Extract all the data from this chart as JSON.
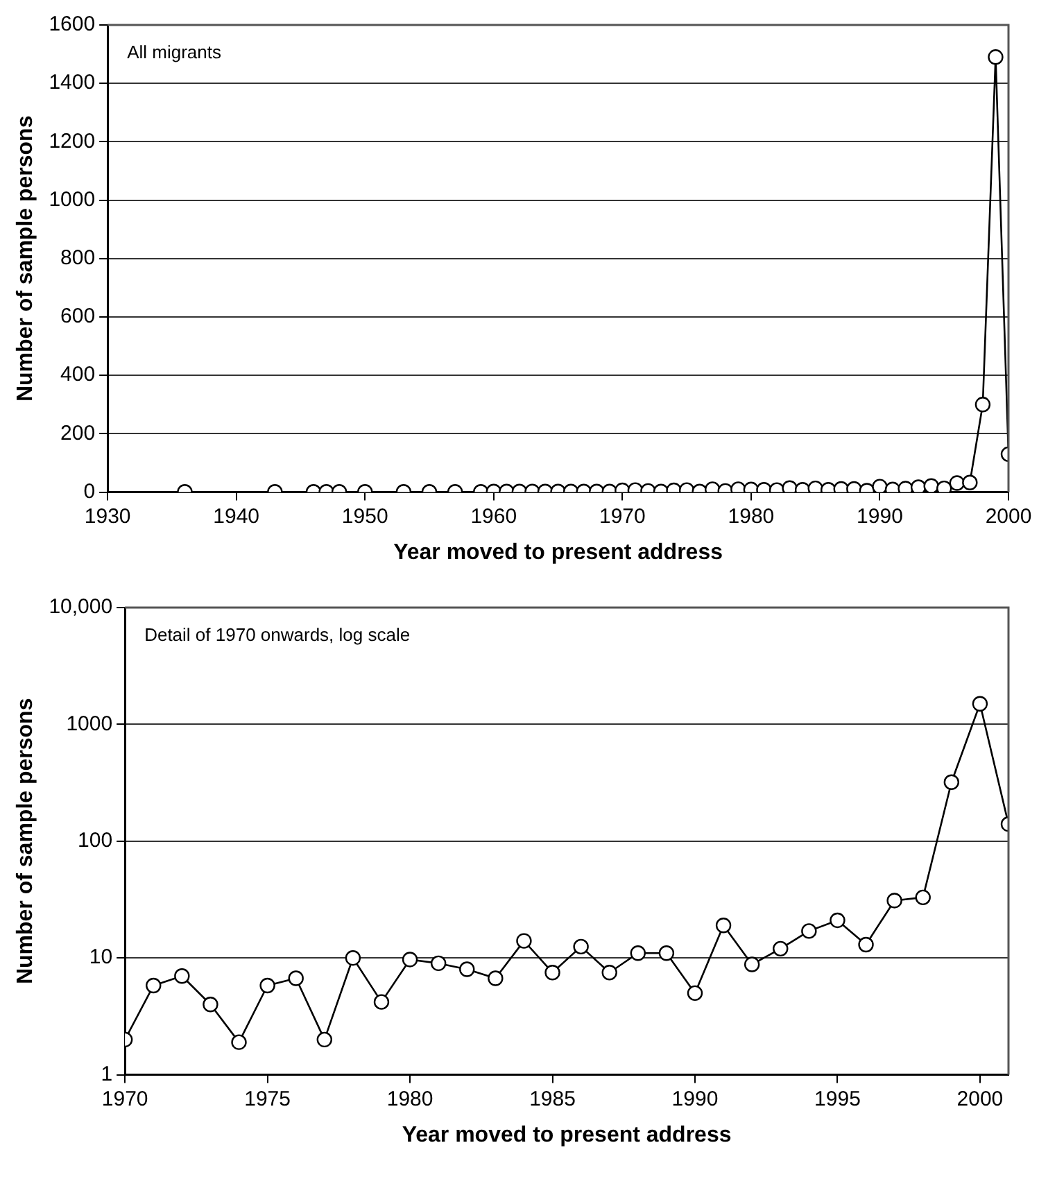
{
  "chart_data": [
    {
      "type": "line",
      "xlabel": "Year moved to present address",
      "ylabel": "Number of sample persons",
      "annotations": [
        "All migrants"
      ],
      "x": [
        1936,
        1943,
        1946,
        1947,
        1948,
        1950,
        1953,
        1955,
        1957,
        1959,
        1960,
        1961,
        1962,
        1963,
        1964,
        1965,
        1966,
        1967,
        1968,
        1969,
        1970,
        1971,
        1972,
        1973,
        1974,
        1975,
        1976,
        1977,
        1978,
        1979,
        1980,
        1981,
        1982,
        1983,
        1984,
        1985,
        1986,
        1987,
        1988,
        1989,
        1990,
        1991,
        1992,
        1993,
        1994,
        1995,
        1996,
        1997,
        1998,
        1999,
        2000
      ],
      "series": [
        {
          "color": "#000000",
          "values": [
            1,
            1,
            1,
            1,
            1,
            1,
            1,
            1,
            1,
            1,
            2,
            2,
            2,
            2,
            2,
            2,
            2,
            2,
            2,
            2,
            6,
            7,
            4,
            2,
            6,
            7,
            2,
            10,
            4,
            10,
            9,
            8,
            7,
            14,
            8,
            13,
            8,
            11,
            11,
            5,
            19,
            9,
            12,
            17,
            21,
            13,
            31,
            33,
            300,
            1490,
            130
          ]
        }
      ],
      "xlim": [
        1930,
        2000
      ],
      "xticks": [
        1930,
        1940,
        1950,
        1960,
        1970,
        1980,
        1990,
        2000
      ],
      "ylim": [
        0,
        1600
      ],
      "yticks": [
        0,
        200,
        400,
        600,
        800,
        1000,
        1200,
        1400,
        1600
      ],
      "grid": "y",
      "legend": false,
      "marker": "circle",
      "line_style": "solid"
    },
    {
      "type": "line",
      "xlabel": "Year moved to present address",
      "ylabel": "Number of sample persons",
      "annotations": [
        "Detail of 1970 onwards, log scale"
      ],
      "x": [
        1970,
        1971,
        1972,
        1973,
        1974,
        1975,
        1976,
        1977,
        1978,
        1979,
        1980,
        1981,
        1982,
        1983,
        1984,
        1985,
        1986,
        1987,
        1988,
        1989,
        1990,
        1991,
        1992,
        1993,
        1994,
        1995,
        1996,
        1997,
        1998,
        1999,
        2000,
        2001
      ],
      "series": [
        {
          "color": "#000000",
          "values": [
            2,
            5.8,
            7,
            4,
            1.9,
            5.8,
            6.7,
            2,
            10,
            4.2,
            9.7,
            9,
            8,
            6.7,
            14,
            7.5,
            12.5,
            7.5,
            11,
            11,
            5,
            19,
            8.8,
            12,
            17,
            21,
            13,
            31,
            33,
            320,
            1500,
            140
          ]
        }
      ],
      "xlim": [
        1970,
        2001
      ],
      "xticks": [
        1970,
        1975,
        1980,
        1985,
        1990,
        1995,
        2000
      ],
      "log": "y",
      "ylim": [
        1,
        10000
      ],
      "yticks": [
        1,
        10,
        100,
        1000,
        {
          "value": 10000,
          "label": "10,000"
        }
      ],
      "grid": "y",
      "legend": false,
      "marker": "circle",
      "line_style": "solid"
    }
  ]
}
